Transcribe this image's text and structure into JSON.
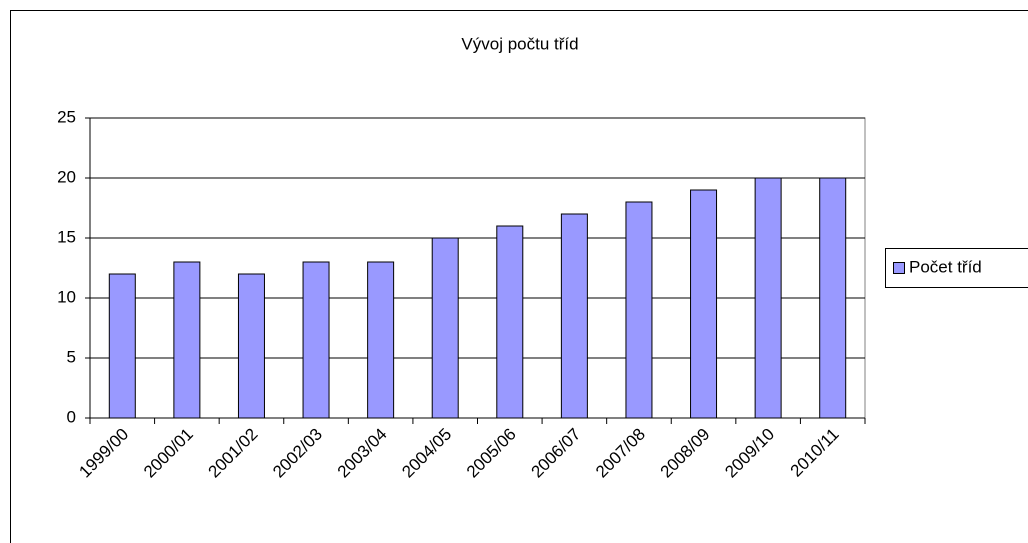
{
  "chart_data": {
    "type": "bar",
    "title": "Vývoj počtu tříd",
    "categories": [
      "1999/00",
      "2000/01",
      "2001/02",
      "2002/03",
      "2003/04",
      "2004/05",
      "2005/06",
      "2006/07",
      "2007/08",
      "2008/09",
      "2009/10",
      "2010/11"
    ],
    "series": [
      {
        "name": "Počet tříd",
        "color": "#9999ff",
        "values": [
          12,
          13,
          12,
          13,
          13,
          15,
          16,
          17,
          18,
          19,
          20,
          20
        ]
      }
    ],
    "ylim": [
      0,
      25
    ],
    "yticks": [
      0,
      5,
      10,
      15,
      20,
      25
    ],
    "grid": true,
    "legend": "right"
  }
}
